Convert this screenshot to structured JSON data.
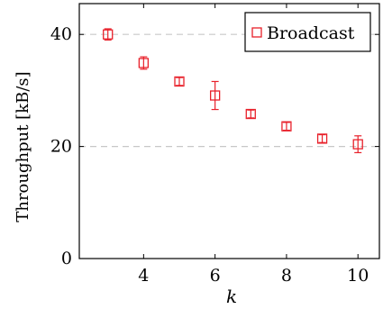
{
  "chart_data": {
    "type": "scatter",
    "xlabel": "k",
    "ylabel": "Throughput [kB/s]",
    "x_ticks": [
      "4",
      "6",
      "8",
      "10"
    ],
    "y_ticks": [
      "0",
      "20",
      "40"
    ],
    "xlim": [
      2.2,
      10.6
    ],
    "ylim": [
      0,
      45.5
    ],
    "grid": "horizontal dashed at 20 and 40",
    "legend_position": "top-right",
    "series": [
      {
        "name": "Broadcast",
        "color": "#e8202a",
        "marker": "square",
        "x": [
          3,
          4,
          5,
          6,
          7,
          8,
          9,
          10
        ],
        "y": [
          40.0,
          34.9,
          31.6,
          29.1,
          25.8,
          23.6,
          21.4,
          20.4
        ],
        "err_low": [
          39.0,
          33.8,
          30.9,
          26.6,
          25.1,
          22.9,
          20.7,
          18.9
        ],
        "err_high": [
          41.0,
          36.0,
          32.3,
          31.6,
          26.5,
          24.3,
          22.1,
          21.9
        ]
      }
    ]
  }
}
